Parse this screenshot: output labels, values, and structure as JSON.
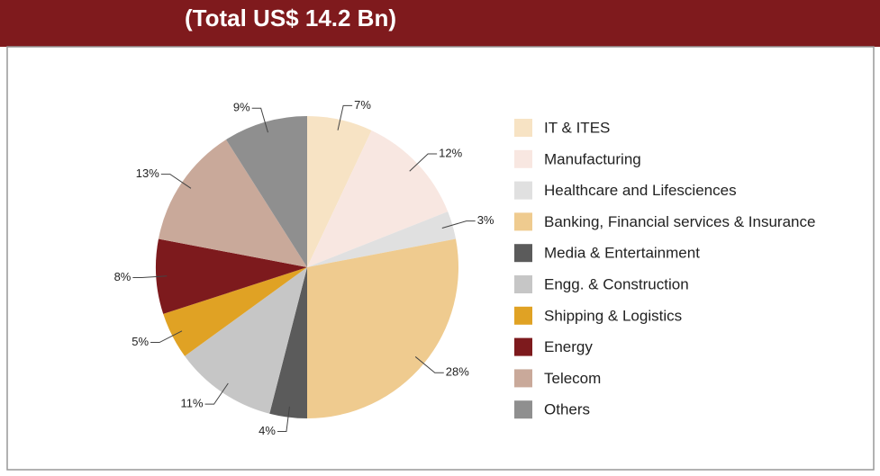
{
  "chart_data": {
    "type": "pie",
    "title": "(Total US$ 14.2 Bn)",
    "categories": [
      "IT & ITES",
      "Manufacturing",
      "Healthcare and Lifesciences",
      "Banking, Financial services & Insurance",
      "Media & Entertainment",
      "Engg. & Construction",
      "Shipping & Logistics",
      "Energy",
      "Telecom",
      "Others"
    ],
    "values": [
      7,
      12,
      3,
      28,
      4,
      11,
      5,
      8,
      13,
      9
    ],
    "value_labels": [
      "7%",
      "12%",
      "3%",
      "28%",
      "4%",
      "11%",
      "5%",
      "8%",
      "13%",
      "9%"
    ],
    "colors": [
      "#f7e3c4",
      "#f8e7e1",
      "#e0e0e0",
      "#efcb8f",
      "#5b5b5b",
      "#c6c6c6",
      "#e0a224",
      "#7d1a1d",
      "#c9a99a",
      "#8f8f8f"
    ],
    "legend": "right"
  }
}
